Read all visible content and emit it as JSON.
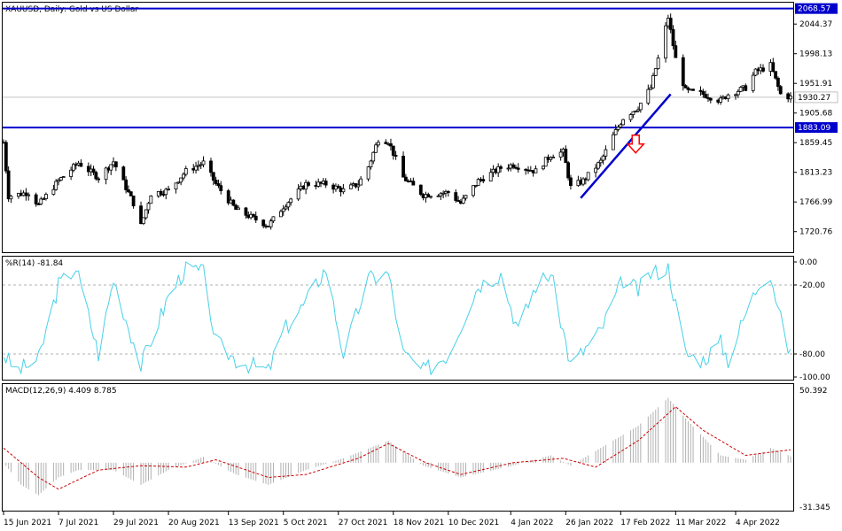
{
  "chart_data": [
    {
      "type": "candlestick",
      "title": "XAUUSD, Daily:  Gold vs US Dollar",
      "ylim": [
        1690,
        2075
      ],
      "y_ticks": [
        "2044.37",
        "1998.13",
        "1951.91",
        "1905.68",
        "1859.45",
        "1813.23",
        "1766.99",
        "1720.76"
      ],
      "current_price": "1930.27",
      "horizontal_lines": [
        {
          "value": 2068.57,
          "label": "2068.57",
          "color": "#0000cc"
        },
        {
          "value": 1883.09,
          "label": "1883.09",
          "color": "#0000cc"
        }
      ],
      "trendline": {
        "from": [
          "2022-02-01",
          1773
        ],
        "to": [
          "2022-03-09",
          1935
        ],
        "color": "#0000cc"
      },
      "arrow": {
        "date": "2022-02-23",
        "value": 1860,
        "direction": "down",
        "color": "#ff0000"
      },
      "series": [
        {
          "date": "2021-06-15",
          "close": 1860
        },
        {
          "date": "2021-06-17",
          "close": 1776
        },
        {
          "date": "2021-06-25",
          "close": 1782
        },
        {
          "date": "2021-06-29",
          "close": 1762
        },
        {
          "date": "2021-07-07",
          "close": 1800
        },
        {
          "date": "2021-07-15",
          "close": 1828
        },
        {
          "date": "2021-07-23",
          "close": 1805
        },
        {
          "date": "2021-07-29",
          "close": 1830
        },
        {
          "date": "2021-08-06",
          "close": 1765
        },
        {
          "date": "2021-08-09",
          "close": 1730
        },
        {
          "date": "2021-08-13",
          "close": 1780
        },
        {
          "date": "2021-08-20",
          "close": 1785
        },
        {
          "date": "2021-08-27",
          "close": 1815
        },
        {
          "date": "2021-09-03",
          "close": 1828
        },
        {
          "date": "2021-09-08",
          "close": 1795
        },
        {
          "date": "2021-09-16",
          "close": 1755
        },
        {
          "date": "2021-09-29",
          "close": 1730
        },
        {
          "date": "2021-10-05",
          "close": 1760
        },
        {
          "date": "2021-10-14",
          "close": 1795
        },
        {
          "date": "2021-10-22",
          "close": 1795
        },
        {
          "date": "2021-10-29",
          "close": 1785
        },
        {
          "date": "2021-11-04",
          "close": 1795
        },
        {
          "date": "2021-11-08",
          "close": 1822
        },
        {
          "date": "2021-11-12",
          "close": 1865
        },
        {
          "date": "2021-11-16",
          "close": 1862
        },
        {
          "date": "2021-11-22",
          "close": 1805
        },
        {
          "date": "2021-11-30",
          "close": 1778
        },
        {
          "date": "2021-12-10",
          "close": 1782
        },
        {
          "date": "2021-12-15",
          "close": 1765
        },
        {
          "date": "2021-12-22",
          "close": 1800
        },
        {
          "date": "2021-12-31",
          "close": 1820
        },
        {
          "date": "2022-01-05",
          "close": 1825
        },
        {
          "date": "2022-01-14",
          "close": 1815
        },
        {
          "date": "2022-01-20",
          "close": 1840
        },
        {
          "date": "2022-01-25",
          "close": 1845
        },
        {
          "date": "2022-01-28",
          "close": 1790
        },
        {
          "date": "2022-02-02",
          "close": 1800
        },
        {
          "date": "2022-02-09",
          "close": 1830
        },
        {
          "date": "2022-02-14",
          "close": 1870
        },
        {
          "date": "2022-02-18",
          "close": 1898
        },
        {
          "date": "2022-02-24",
          "close": 1915
        },
        {
          "date": "2022-03-01",
          "close": 1945
        },
        {
          "date": "2022-03-04",
          "close": 1990
        },
        {
          "date": "2022-03-08",
          "close": 2055
        },
        {
          "date": "2022-03-11",
          "close": 1990
        },
        {
          "date": "2022-03-15",
          "close": 1940
        },
        {
          "date": "2022-03-22",
          "close": 1935
        },
        {
          "date": "2022-03-29",
          "close": 1925
        },
        {
          "date": "2022-04-01",
          "close": 1935
        },
        {
          "date": "2022-04-08",
          "close": 1945
        },
        {
          "date": "2022-04-12",
          "close": 1970
        },
        {
          "date": "2022-04-18",
          "close": 1980
        },
        {
          "date": "2022-04-22",
          "close": 1935
        },
        {
          "date": "2022-04-26",
          "close": 1930
        }
      ]
    },
    {
      "type": "line",
      "title": "%R(14) -81.84",
      "ylim": [
        -100,
        0
      ],
      "y_ticks": [
        "0.00",
        "-20.00",
        "-80.00",
        "-100.00"
      ],
      "levels": [
        -20,
        -80
      ],
      "color": "#48d1e8",
      "series": [
        {
          "date": "2021-06-15",
          "value": -80
        },
        {
          "date": "2021-06-20",
          "value": -95
        },
        {
          "date": "2021-06-29",
          "value": -85
        },
        {
          "date": "2021-07-07",
          "value": -20
        },
        {
          "date": "2021-07-14",
          "value": -5
        },
        {
          "date": "2021-07-23",
          "value": -80
        },
        {
          "date": "2021-07-29",
          "value": -15
        },
        {
          "date": "2021-08-09",
          "value": -90
        },
        {
          "date": "2021-08-20",
          "value": -30
        },
        {
          "date": "2021-08-27",
          "value": -5
        },
        {
          "date": "2021-09-03",
          "value": -10
        },
        {
          "date": "2021-09-08",
          "value": -70
        },
        {
          "date": "2021-09-16",
          "value": -85
        },
        {
          "date": "2021-09-29",
          "value": -95
        },
        {
          "date": "2021-10-05",
          "value": -60
        },
        {
          "date": "2021-10-14",
          "value": -35
        },
        {
          "date": "2021-10-22",
          "value": -5
        },
        {
          "date": "2021-10-29",
          "value": -80
        },
        {
          "date": "2021-11-08",
          "value": -15
        },
        {
          "date": "2021-11-16",
          "value": -10
        },
        {
          "date": "2021-11-22",
          "value": -80
        },
        {
          "date": "2021-11-30",
          "value": -95
        },
        {
          "date": "2021-12-10",
          "value": -80
        },
        {
          "date": "2021-12-22",
          "value": -20
        },
        {
          "date": "2021-12-31",
          "value": -10
        },
        {
          "date": "2022-01-07",
          "value": -60
        },
        {
          "date": "2022-01-14",
          "value": -20
        },
        {
          "date": "2022-01-20",
          "value": -10
        },
        {
          "date": "2022-01-28",
          "value": -90
        },
        {
          "date": "2022-02-09",
          "value": -60
        },
        {
          "date": "2022-02-18",
          "value": -15
        },
        {
          "date": "2022-02-24",
          "value": -25
        },
        {
          "date": "2022-03-01",
          "value": -10
        },
        {
          "date": "2022-03-08",
          "value": -5
        },
        {
          "date": "2022-03-15",
          "value": -80
        },
        {
          "date": "2022-03-22",
          "value": -85
        },
        {
          "date": "2022-03-29",
          "value": -70
        },
        {
          "date": "2022-04-01",
          "value": -85
        },
        {
          "date": "2022-04-08",
          "value": -45
        },
        {
          "date": "2022-04-14",
          "value": -15
        },
        {
          "date": "2022-04-18",
          "value": -10
        },
        {
          "date": "2022-04-22",
          "value": -50
        },
        {
          "date": "2022-04-26",
          "value": -81.84
        }
      ]
    },
    {
      "type": "bar",
      "title": "MACD(12,26,9) 4.409 8.785",
      "ylim": [
        -31.345,
        50.392
      ],
      "y_ticks": [
        "50.392",
        "-31.345"
      ],
      "series": [
        {
          "name": "MACD",
          "style": "histogram",
          "color": "#b0b0b0",
          "points": [
            {
              "date": "2021-06-15",
              "value": 0
            },
            {
              "date": "2021-06-22",
              "value": -15
            },
            {
              "date": "2021-06-29",
              "value": -22
            },
            {
              "date": "2021-07-07",
              "value": -10
            },
            {
              "date": "2021-07-15",
              "value": -5
            },
            {
              "date": "2021-07-29",
              "value": -5
            },
            {
              "date": "2021-08-09",
              "value": -15
            },
            {
              "date": "2021-08-20",
              "value": -5
            },
            {
              "date": "2021-09-03",
              "value": 4
            },
            {
              "date": "2021-09-16",
              "value": -8
            },
            {
              "date": "2021-09-29",
              "value": -15
            },
            {
              "date": "2021-10-14",
              "value": -5
            },
            {
              "date": "2021-10-29",
              "value": 3
            },
            {
              "date": "2021-11-16",
              "value": 15
            },
            {
              "date": "2021-11-30",
              "value": -2
            },
            {
              "date": "2021-12-15",
              "value": -10
            },
            {
              "date": "2022-01-05",
              "value": -2
            },
            {
              "date": "2022-01-20",
              "value": 5
            },
            {
              "date": "2022-01-28",
              "value": -2
            },
            {
              "date": "2022-02-09",
              "value": 10
            },
            {
              "date": "2022-02-24",
              "value": 25
            },
            {
              "date": "2022-03-08",
              "value": 44
            },
            {
              "date": "2022-03-15",
              "value": 30
            },
            {
              "date": "2022-03-29",
              "value": 5
            },
            {
              "date": "2022-04-08",
              "value": 2
            },
            {
              "date": "2022-04-18",
              "value": 10
            },
            {
              "date": "2022-04-26",
              "value": 4.409
            }
          ]
        },
        {
          "name": "Signal",
          "style": "dashed-line",
          "color": "#cc0000",
          "points": [
            {
              "date": "2021-06-15",
              "value": 10
            },
            {
              "date": "2021-06-29",
              "value": -10
            },
            {
              "date": "2021-07-07",
              "value": -18
            },
            {
              "date": "2021-07-23",
              "value": -5
            },
            {
              "date": "2021-08-09",
              "value": -2
            },
            {
              "date": "2021-08-27",
              "value": -3
            },
            {
              "date": "2021-09-08",
              "value": 2
            },
            {
              "date": "2021-09-29",
              "value": -10
            },
            {
              "date": "2021-10-14",
              "value": -8
            },
            {
              "date": "2021-11-04",
              "value": 3
            },
            {
              "date": "2021-11-16",
              "value": 13
            },
            {
              "date": "2021-12-01",
              "value": 0
            },
            {
              "date": "2021-12-15",
              "value": -8
            },
            {
              "date": "2022-01-05",
              "value": 0
            },
            {
              "date": "2022-01-25",
              "value": 3
            },
            {
              "date": "2022-02-07",
              "value": -3
            },
            {
              "date": "2022-02-24",
              "value": 15
            },
            {
              "date": "2022-03-11",
              "value": 38
            },
            {
              "date": "2022-03-22",
              "value": 22
            },
            {
              "date": "2022-04-08",
              "value": 5
            },
            {
              "date": "2022-04-26",
              "value": 8.785
            }
          ]
        }
      ]
    }
  ],
  "x_axis": {
    "start": "2021-06-15",
    "end": "2022-04-26",
    "ticks": [
      {
        "date": "2021-06-15",
        "label": "15 Jun 2021"
      },
      {
        "date": "2021-07-07",
        "label": "7 Jul 2021"
      },
      {
        "date": "2021-07-29",
        "label": "29 Jul 2021"
      },
      {
        "date": "2021-08-20",
        "label": "20 Aug 2021"
      },
      {
        "date": "2021-09-13",
        "label": "13 Sep 2021"
      },
      {
        "date": "2021-10-05",
        "label": "5 Oct 2021"
      },
      {
        "date": "2021-10-27",
        "label": "27 Oct 2021"
      },
      {
        "date": "2021-11-18",
        "label": "18 Nov 2021"
      },
      {
        "date": "2021-12-10",
        "label": "10 Dec 2021"
      },
      {
        "date": "2022-01-04",
        "label": "4 Jan 2022"
      },
      {
        "date": "2022-01-26",
        "label": "26 Jan 2022"
      },
      {
        "date": "2022-02-17",
        "label": "17 Feb 2022"
      },
      {
        "date": "2022-03-11",
        "label": "11 Mar 2022"
      },
      {
        "date": "2022-04-04",
        "label": "4 Apr 2022"
      }
    ]
  }
}
